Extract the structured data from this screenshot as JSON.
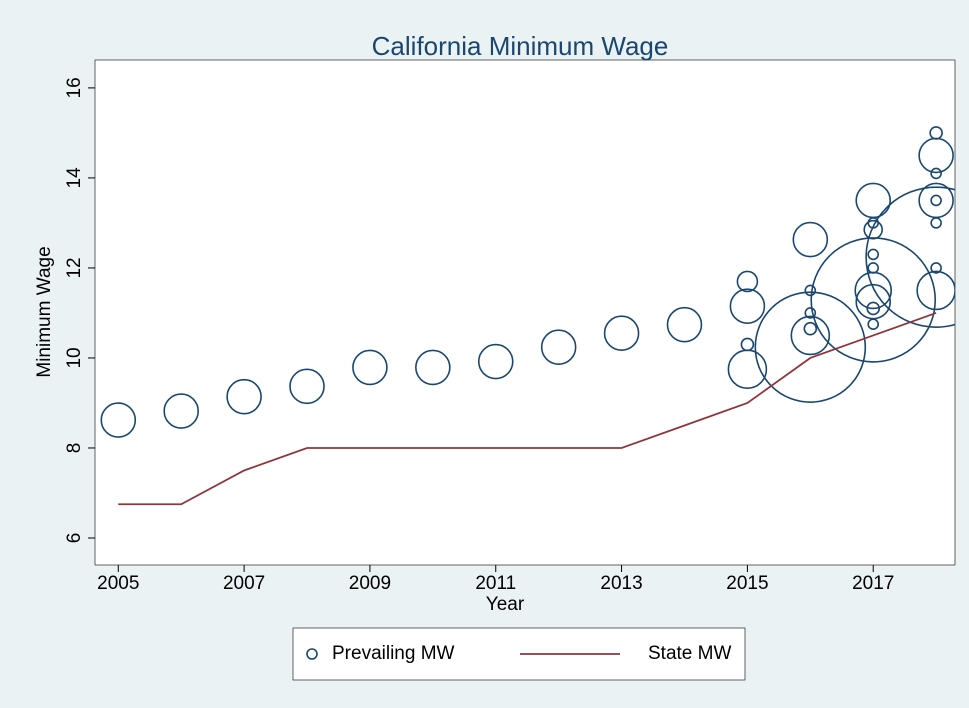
{
  "chart_data": {
    "type": "scatter",
    "title": "California Minimum Wage",
    "x_label": "Year",
    "y_label": "Minimum Wage",
    "xlim": [
      2004.63,
      2018.3
    ],
    "xticks": [
      2005,
      2007,
      2009,
      2011,
      2013,
      2015,
      2017
    ],
    "ylim": [
      5.4,
      16.62
    ],
    "yticks": [
      6,
      8,
      10,
      12,
      14,
      16
    ],
    "grid": false,
    "legend": "bottom",
    "series": [
      {
        "name": "Prevailing MW",
        "type": "scatter",
        "color": "#1a476f",
        "x": [
          2005,
          2006,
          2007,
          2008,
          2009,
          2010,
          2011,
          2012,
          2013,
          2014,
          2015,
          2015,
          2015,
          2015,
          2016,
          2016,
          2016,
          2016,
          2016,
          2016,
          2017,
          2017,
          2017,
          2017,
          2017,
          2017,
          2017,
          2017,
          2017,
          2017,
          2018,
          2018,
          2018,
          2018,
          2018,
          2018,
          2018,
          2018,
          2018
        ],
        "values": [
          8.62,
          8.82,
          9.14,
          9.37,
          9.79,
          9.79,
          9.92,
          10.24,
          10.55,
          10.74,
          11.7,
          11.15,
          10.3,
          9.75,
          12.63,
          11.5,
          11.0,
          10.65,
          10.5,
          10.24,
          13.5,
          13.0,
          12.85,
          12.3,
          12.0,
          11.5,
          11.29,
          11.25,
          11.1,
          10.75,
          15.0,
          14.5,
          14.1,
          13.5,
          13.5,
          13.0,
          12.24,
          12.0,
          11.5
        ],
        "size": [
          289,
          289,
          289,
          289,
          289,
          289,
          289,
          289,
          289,
          289,
          100,
          289,
          36,
          361,
          289,
          25,
          25,
          36,
          361,
          3025,
          289,
          25,
          81,
          25,
          25,
          324,
          3844,
          289,
          36,
          25,
          36,
          289,
          25,
          289,
          25,
          25,
          4900,
          25,
          361
        ]
      },
      {
        "name": "State MW",
        "type": "line",
        "color": "#90353b",
        "x": [
          2005,
          2006,
          2007,
          2008,
          2009,
          2010,
          2011,
          2012,
          2013,
          2014,
          2015,
          2016,
          2017,
          2018
        ],
        "values": [
          6.75,
          6.75,
          7.5,
          8,
          8,
          8,
          8,
          8,
          8,
          8.5,
          9,
          10,
          10.5,
          11
        ]
      }
    ]
  }
}
